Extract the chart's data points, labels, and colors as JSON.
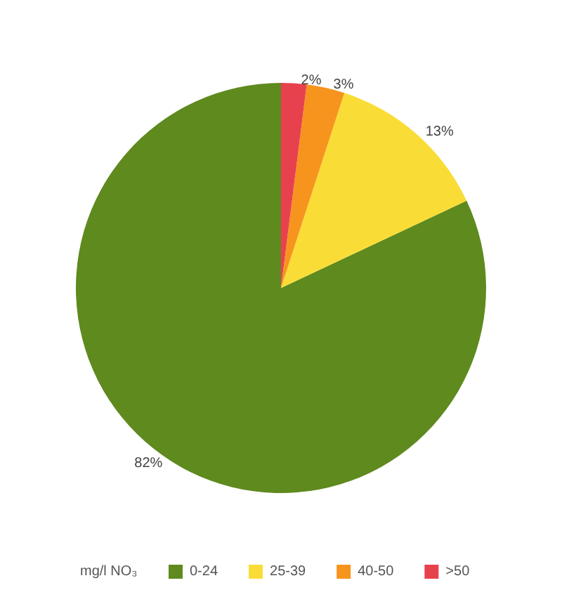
{
  "chart_data": {
    "type": "pie",
    "legend_title": "mg/l NO₃",
    "categories": [
      "0-24",
      "25-39",
      "40-50",
      ">50"
    ],
    "values": [
      82,
      13,
      3,
      2
    ],
    "colors": [
      "#5e8a1e",
      "#f9dd36",
      "#f7941d",
      "#e8414e"
    ],
    "value_labels": [
      "82%",
      "13%",
      "3%",
      "2%"
    ],
    "legend": "bottom"
  }
}
